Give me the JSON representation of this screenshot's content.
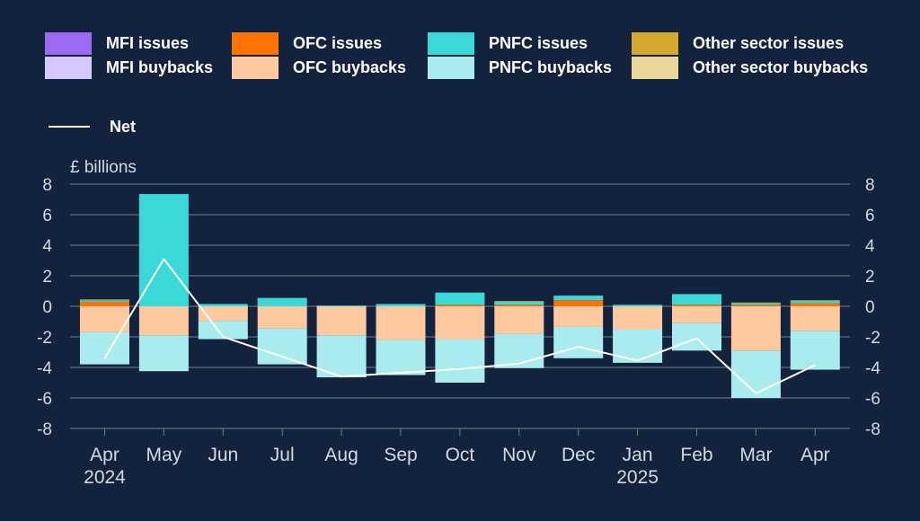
{
  "chart_data": {
    "type": "bar",
    "stacked": true,
    "y_unit_label": "£ billions",
    "ylim": [
      -8,
      8
    ],
    "yticks": [
      8,
      6,
      4,
      2,
      0,
      -2,
      -4,
      -6,
      -8
    ],
    "ytick_labels": [
      "8",
      "6",
      "4",
      "2",
      "0",
      "-2",
      "-4",
      "-6",
      "-8"
    ],
    "grid": true,
    "legend_position": "top",
    "categories": [
      "Apr",
      "May",
      "Jun",
      "Jul",
      "Aug",
      "Sep",
      "Oct",
      "Nov",
      "Dec",
      "Jan",
      "Feb",
      "Mar",
      "Apr"
    ],
    "year_labels": [
      {
        "index": 0,
        "text": "2024"
      },
      {
        "index": 9,
        "text": "2025"
      }
    ],
    "series": [
      {
        "name": "MFI issues",
        "color": "#9b6bf2",
        "values": [
          0,
          0,
          0,
          0,
          0,
          0,
          0,
          0,
          0,
          0,
          0,
          0,
          0
        ]
      },
      {
        "name": "OFC issues",
        "color": "#ff7300",
        "values": [
          0.3,
          0,
          0,
          0,
          0,
          0,
          0.1,
          0.1,
          0.4,
          0,
          0.1,
          0.1,
          0.2
        ]
      },
      {
        "name": "PNFC issues",
        "color": "#3bd8d8",
        "values": [
          0.1,
          7.35,
          0.15,
          0.55,
          0.05,
          0.15,
          0.8,
          0.2,
          0.3,
          0.1,
          0.7,
          0.1,
          0.15
        ]
      },
      {
        "name": "Other sector issues",
        "color": "#d4a92e",
        "values": [
          0.05,
          0,
          0,
          0,
          0,
          0,
          0,
          0.05,
          0,
          0,
          0,
          0.05,
          0.05
        ]
      },
      {
        "name": "MFI buybacks",
        "color": "#d4c6ff",
        "values": [
          0,
          0,
          0,
          0,
          0,
          0,
          0,
          0,
          0,
          0,
          0,
          0,
          0
        ]
      },
      {
        "name": "OFC buybacks",
        "color": "#ffc9a0",
        "values": [
          -1.7,
          -1.9,
          -0.95,
          -1.45,
          -1.9,
          -2.2,
          -2.15,
          -1.8,
          -1.35,
          -1.5,
          -1.1,
          -2.9,
          -1.6
        ]
      },
      {
        "name": "PNFC buybacks",
        "color": "#aaeced",
        "values": [
          -2.1,
          -2.35,
          -1.2,
          -2.35,
          -2.75,
          -2.3,
          -2.85,
          -2.25,
          -2.05,
          -2.2,
          -1.8,
          -3.1,
          -2.55
        ]
      },
      {
        "name": "Other sector buybacks",
        "color": "#e9d89a",
        "values": [
          0,
          0,
          0,
          0,
          0,
          0,
          0,
          0,
          0,
          0,
          0,
          0,
          0
        ]
      }
    ],
    "net": {
      "name": "Net",
      "color": "#ffffff",
      "values": [
        -3.4,
        3.1,
        -2.0,
        -3.3,
        -4.6,
        -4.35,
        -4.1,
        -3.75,
        -2.65,
        -3.55,
        -2.1,
        -5.7,
        -3.85
      ]
    }
  },
  "legend": {
    "items": [
      {
        "label": "MFI issues",
        "color": "#9b6bf2"
      },
      {
        "label": "OFC issues",
        "color": "#ff7300"
      },
      {
        "label": "PNFC issues",
        "color": "#3bd8d8"
      },
      {
        "label": "Other sector issues",
        "color": "#d4a92e"
      },
      {
        "label": "MFI buybacks",
        "color": "#d4c6ff"
      },
      {
        "label": "OFC buybacks",
        "color": "#ffc9a0"
      },
      {
        "label": "PNFC buybacks",
        "color": "#aaeced"
      },
      {
        "label": "Other sector buybacks",
        "color": "#e9d89a"
      }
    ],
    "net_label": "Net"
  },
  "colors": {
    "background": "#13233d",
    "grid": "#6f8096",
    "axis_text": "#d4dae3"
  }
}
